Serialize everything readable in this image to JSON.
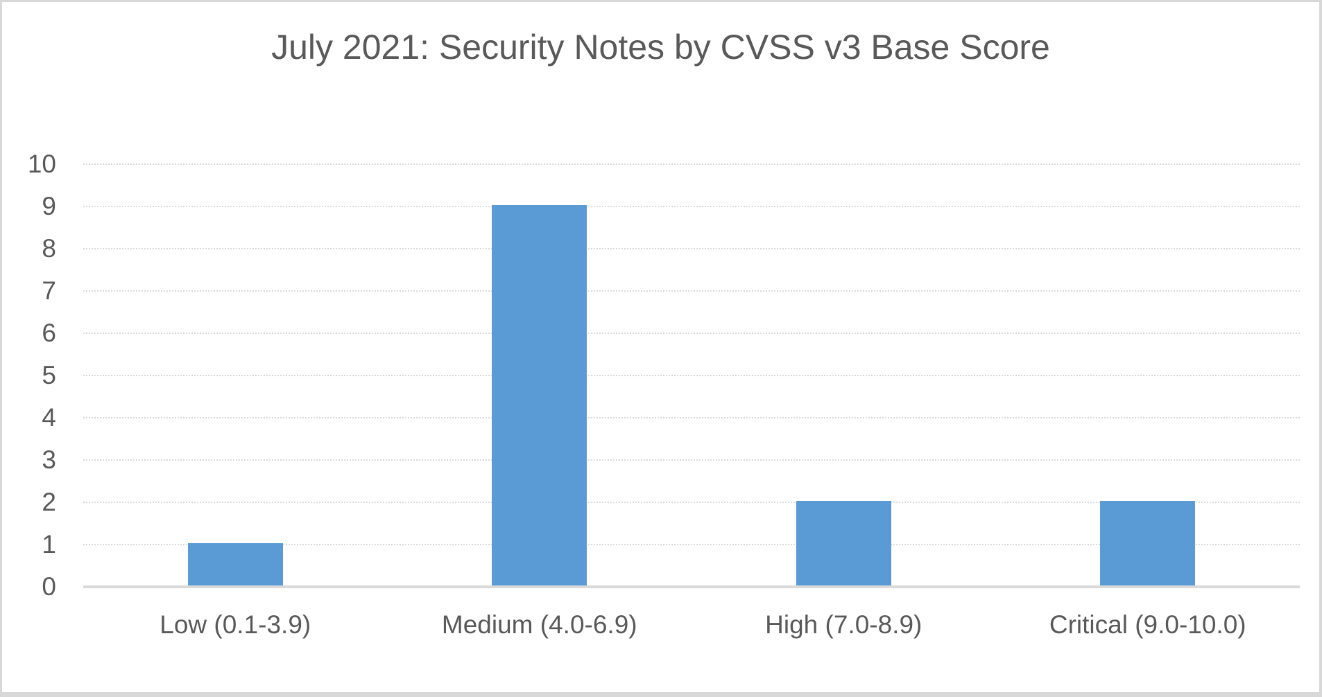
{
  "chart_data": {
    "type": "bar",
    "title": "July 2021: Security Notes by CVSS v3 Base Score",
    "categories": [
      "Low (0.1-3.9)",
      "Medium (4.0-6.9)",
      "High (7.0-8.9)",
      "Critical (9.0-10.0)"
    ],
    "values": [
      1,
      9,
      2,
      2
    ],
    "series_name": "Security Notes",
    "xlabel": "",
    "ylabel": "",
    "ylim": [
      0,
      10
    ],
    "ytick_interval": 1,
    "ytick_labels": [
      "0",
      "1",
      "2",
      "3",
      "4",
      "5",
      "6",
      "7",
      "8",
      "9",
      "10"
    ],
    "grid": true,
    "gridline_style": "dotted",
    "legend_position": "none",
    "colors": {
      "bar_fill": "#5b9bd5",
      "title_text": "#595959",
      "tick_text": "#595959",
      "gridline": "#d9d9d9",
      "axis_line": "#dadada",
      "background": "#ffffff",
      "frame_border": "#d8d8d8"
    }
  }
}
